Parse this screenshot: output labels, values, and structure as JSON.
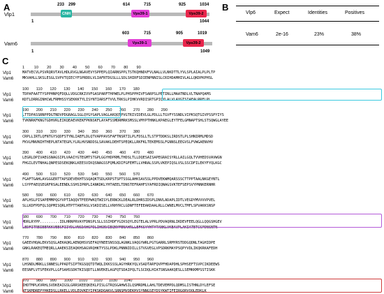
{
  "panel_a": {
    "letter": "A",
    "proteins": [
      {
        "name": "Vlp1",
        "start": "1",
        "end": "1044",
        "domains": [
          {
            "label": "CNH",
            "from": "233",
            "to": "299",
            "color": "#28b5a3"
          },
          {
            "label": "Vps39-1",
            "from": "614",
            "to": "715",
            "color": "#e23cd5"
          },
          {
            "label": "Vps39-2",
            "from": "925",
            "to": "1034",
            "color": "#e8264c"
          }
        ]
      },
      {
        "name": "Vam6",
        "start": "1",
        "end": "1049",
        "domains": [
          {
            "label": "Vps39-1",
            "from": "603",
            "to": "715",
            "color": "#e23cd5"
          },
          {
            "label": "Vps39-2",
            "from": "905",
            "to": "1019",
            "color": "#e8264c"
          }
        ]
      }
    ]
  },
  "panel_b": {
    "letter": "B",
    "headers": [
      "Vlp6",
      "Expect",
      "Identities",
      "Positives"
    ],
    "row": [
      "Vam6",
      "2e-16",
      "23%",
      "38%"
    ]
  },
  "panel_c": {
    "letter": "C",
    "seq1_name": "Vlp1",
    "seq2_name": "Vam6",
    "blocks": [
      {
        "ruler": "1         10        20        30        40        50        60        70        80        90",
        "s1": "MATVECVLPSVRQRVTAVLHDLRVGLNGAVEVYSPPEPLQIARNSPPLTSTKQHNDVFVLNALLVLNKDTTLYVLSPLAIALPLPLTP",
        "s2": "MKVAHLLSKSLESGLSVPVTQIECYFSPRDDLVLIAFRTDGSLLLSDLSHIRFSDIENPNNISLCRIHDAMHIVLALLQKDPKPHSL"
      },
      {
        "ruler": "100       110       120       130       140       150       160       170       180",
        "s1": "TDPAFAATTYSPPHNPQFDQLLVDGCRKIVVFGASPARFTHPWELPLPHSPPHIVFSARPSLPETINLLMAATNDLVLTNAPQAMS",
        "s2": "KDTLDRRGINHCWLFRMHSSYSEKKKTYLISYNTIARSFTVVLTRKSLPIHKVVRDISRTGPIQYLALVLAYGTSIAEALRRFLPL"
      },
      {
        "ruler": "190       200       210       220       230       240       250       260       270       280       290",
        "s1": "LTTDPASSRNPPDGTNDVPDGRAGLSGLQYGYGAPLVAGLAKQQTPVGTRIVIDEVLGLPDLLLTGVFYSSNDLVIPKSQTGIVPSSPYIYS",
        "s2": "TVKNRKFKNGTGDHVRLEIKQEAEVKEKFPKNSKFLAYAFSSMDRMRKSMSSLVMYPTHNKLKPAEGLEYTFELGMNAPTSHLSTSQWGLAYEE"
      },
      {
        "ruler": "300       310       320       330       340       350       360       370       380",
        "s1": "CRPLLIRTLQFNTGYSQDFSTYNLIAEFLDLQTVAPPAVSFAFTNSRTILPLFDSLLTLSTPTDDKSLIRDSTLPLSHNIRMLMDSD",
        "s2": "FKVLMNVNIHTHEPLNTATEGPLYLRLHVSNDDSLSAVAKLDEHTSPEQKLLRKFKLTEKEMSSLFGNNSLEEGVSLFVWGAENVHV"
      },
      {
        "ruler": "390       400       410       420       430       440       450       460       470       480",
        "s1": "LEGRLDPIVAEGSNAGSIPLVAAIYGTEGMTSTGPLGGYHDPRMLTHDSLTLLDQESAISAPEGRAISYRLLAILGQLTVVHEDSVAVWGN",
        "s2": "FHGILEVTNHALQNPESDSEKQNKLKEESVIKQSNAGSSFQMLKDIFGFEMTLLVHRALSSPLVKEPIQSLVSLSSCDFILEKYFYQLKGC"
      },
      {
        "ruler": "490       500       510       520       530       540       550       560       570",
        "s1": "FGAFTGAHLAVGGGERTTAPSDEVEKHTSSQAQKTSDLKRPSTSPTSSGLAHKSAVSSLPPDVEKWMQARSSSCTTPPTAALNKGEYNTL",
        "s2": "LSYPFAEQSEGRFRSALEENDLSSHSIPRPLIANKDKLYHTAEELTDNSTEFRAHFSYAFRDIQNAGSVKTEFSEPSVYPNNKERNHR"
      },
      {
        "ruler": "580       590       600       610       620       630       640       650       660       670",
        "s1": "APLHSLPISAPEMMPQGYVPTIAQQVTFEEPWKQTWISYLERNCKLDEALRLDHRSIDSPLDNVLADAPLIDTLVEGDYMVVVVPVEL",
        "s2": "SLLKDFPDFQLSQPMISQRLHTPTTANTASLVSKDISELLVRHYRCLGDNFTEFEEAKDAALRLLCWNELMVCLTMFLSPVAKKSNSP"
      },
      {
        "ruler": "680       690       700       710       720       730       740       750       760",
        "s1": "MDRLRYPP.........IDLHRNPRVAYFDNSPLSLLSSIHDFYGIKSQYLEGTELALVPRLPDVAQRNLIKDEVFEELQGLLQQGSHGEV",
        "s2": "LEDFITREIEERKKVEESFIIYDLVNSDAHSPDLIHSNVIEQNYFENAHRLLEFKSYYHTYTANKLVKEAVPLAKIATETCSPDNSNTN"
      },
      {
        "ruler": "770       780       790       800       810       820       830       840       850       860",
        "s1": "GAEEVHQALEKVSQSLAEKAQKLAENQHSVSEFAQYNEESNSSQLAGNKLVAQGYWRLPGTGARRLSRMYRSTDDGQDNLTAGHIDPE",
        "s2": "GNKLRAKEQTMEQRLLAAEKSIEAQKHSAGVRQHKTYSSLPDKLPNNNIDILLSTVGVEGLVPSDRKMAYPSQPYVDLIKQKRKAFEDH"
      },
      {
        "ruler": "870       880       890       900       910       920       930       940       950       960",
        "s1": "LHSNDLMRKLLSNNESLPPADTSIPTKGSQQTDTWQLIKKSSSLAGYHRKYQLVSADTARFQVPFHDAPDHLSPHSEFTSVPCIKDEEWS",
        "s2": "EESNFLVTSFEKVPLLGFSAHSSDKTKISQDTLLNVEKELAGFQTSDAIPQLTLSCDQLHIATSNSAAKQESLLSEMKKMPSSTISKK"
      },
      {
        "ruler": "970       980       990       1000      1010      1020      1030      1040",
        "s1": "IHDTMPLKVRHLSVDKEAIGSLGRRSKEEQKEKLPISLGTRQSGAHWSILQSMRDMLLAHLTDEVEMPDLQDMSLISTHNLDYLEFSE",
        "s2": "NTSKMDREPYHKEDSLLRKELLVDLEQVKEYIPKSKDQAKVLSRNSMVQEKHVSYNNGSEYDSYKWTIFEIRGQRVQQLEDKLK"
      }
    ]
  }
}
